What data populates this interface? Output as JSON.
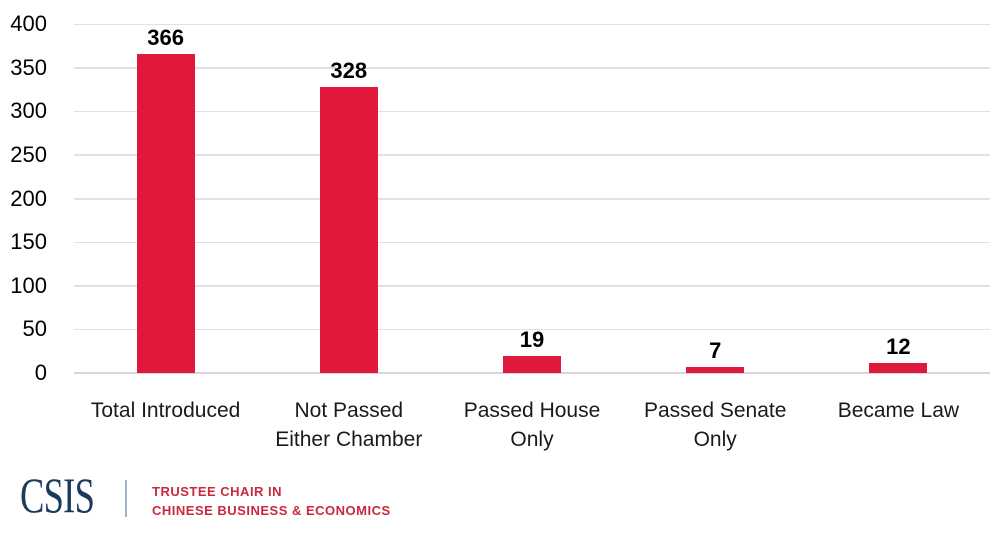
{
  "chart_data": {
    "type": "bar",
    "title": "",
    "xlabel": "",
    "ylabel": "",
    "categories": [
      "Total Introduced",
      "Not Passed\nEither Chamber",
      "Passed House\nOnly",
      "Passed Senate\nOnly",
      "Became Law"
    ],
    "values": [
      366,
      328,
      19,
      7,
      12
    ],
    "value_labels": [
      "366",
      "328",
      "19",
      "7",
      "12"
    ],
    "ylim": [
      0,
      400
    ],
    "yticks": [
      0,
      50,
      100,
      150,
      200,
      250,
      300,
      350,
      400
    ],
    "grid": true,
    "legend_position": "none",
    "bar_color": "#E0183B",
    "gridline_color": "#E1E1E1",
    "axis_line_color": "#D6D6D6",
    "tick_label_color": "#000000",
    "category_label_color": "#1A1A1A"
  },
  "footer": {
    "logo_text": "CSIS",
    "program_line1": "TRUSTEE CHAIR IN",
    "program_line2": "CHINESE BUSINESS & ECONOMICS",
    "logo_color": "#1B3A5C",
    "divider_color": "#9DB4C6",
    "program_color": "#C9293F"
  }
}
